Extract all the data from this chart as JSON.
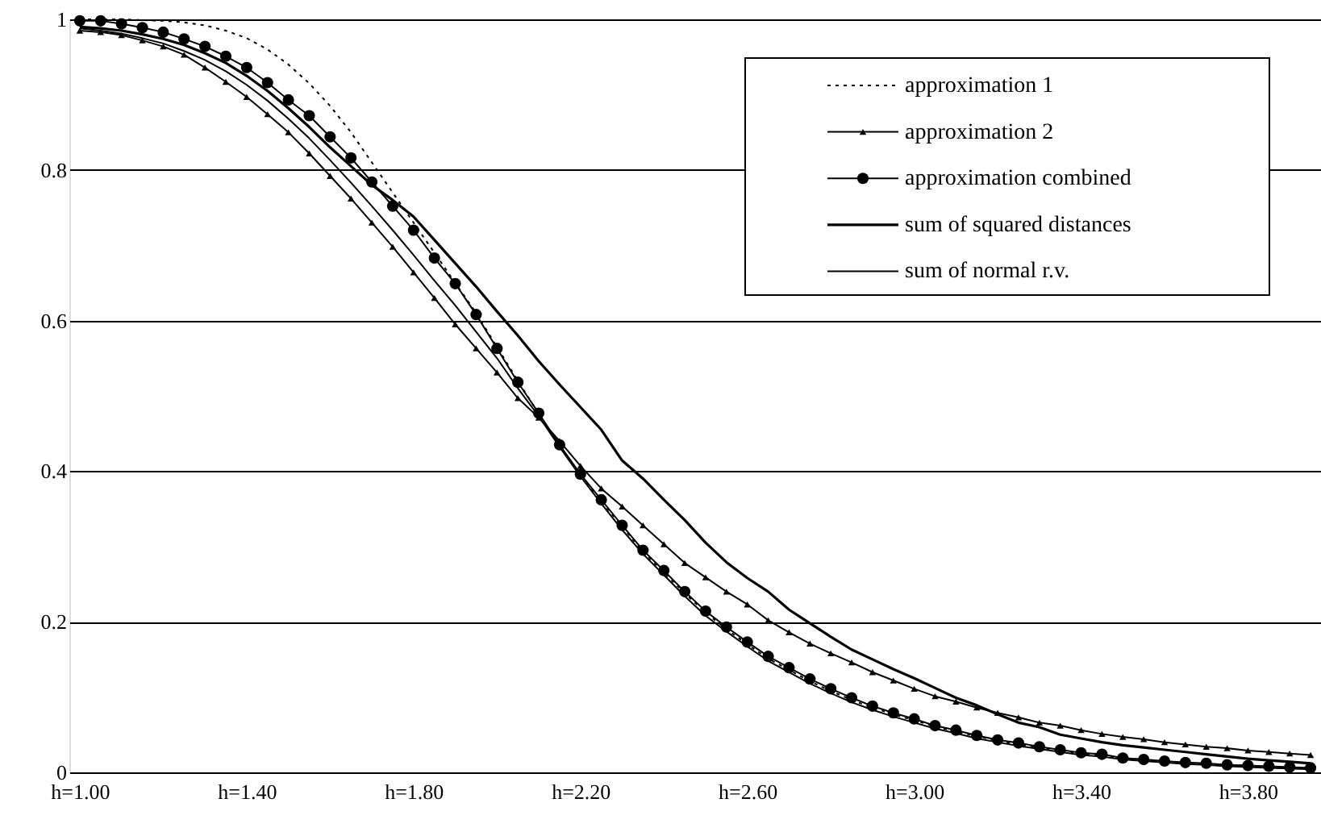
{
  "chart_data": {
    "type": "line",
    "categories": [
      "h=1.00",
      null,
      null,
      null,
      null,
      null,
      null,
      null,
      "h=1.40",
      null,
      null,
      null,
      null,
      null,
      null,
      null,
      "h=1.80",
      null,
      null,
      null,
      null,
      null,
      null,
      null,
      "h=2.20",
      null,
      null,
      null,
      null,
      null,
      null,
      null,
      "h=2.60",
      null,
      null,
      null,
      null,
      null,
      null,
      null,
      "h=3.00",
      null,
      null,
      null,
      null,
      null,
      null,
      null,
      "h=3.40",
      null,
      null,
      null,
      null,
      null,
      null,
      null,
      "h=3.80",
      null,
      null,
      null
    ],
    "ylim": [
      0,
      1
    ],
    "yticks": [
      0,
      0.2,
      0.4,
      0.6,
      0.8,
      1
    ],
    "grid": "y",
    "legend": "top right",
    "series": [
      {
        "name": "approximation 1",
        "color": "#000000",
        "line_style": "dotted",
        "marker": "none",
        "values": [
          1.0,
          1.0,
          1.0,
          0.999,
          0.998,
          0.996,
          0.992,
          0.985,
          0.975,
          0.96,
          0.94,
          0.915,
          0.885,
          0.85,
          0.81,
          0.77,
          0.73,
          0.69,
          0.65,
          0.61,
          0.565,
          0.52,
          0.476,
          0.434,
          0.395,
          0.36,
          0.326,
          0.293,
          0.265,
          0.238,
          0.212,
          0.19,
          0.17,
          0.151,
          0.136,
          0.121,
          0.108,
          0.096,
          0.086,
          0.077,
          0.069,
          0.061,
          0.054,
          0.048,
          0.042,
          0.037,
          0.033,
          0.029,
          0.025,
          0.022,
          0.019,
          0.017,
          0.015,
          0.013,
          0.011,
          0.01,
          0.009,
          0.007,
          0.006,
          0.006
        ]
      },
      {
        "name": "approximation 2",
        "color": "#000000",
        "line_style": "solid",
        "marker": "triangle",
        "values": [
          0.985,
          0.983,
          0.979,
          0.972,
          0.964,
          0.953,
          0.936,
          0.917,
          0.897,
          0.874,
          0.85,
          0.822,
          0.792,
          0.762,
          0.73,
          0.698,
          0.664,
          0.63,
          0.595,
          0.563,
          0.531,
          0.497,
          0.471,
          0.44,
          0.407,
          0.377,
          0.353,
          0.328,
          0.303,
          0.278,
          0.259,
          0.24,
          0.223,
          0.202,
          0.186,
          0.171,
          0.158,
          0.146,
          0.133,
          0.122,
          0.111,
          0.101,
          0.094,
          0.086,
          0.079,
          0.073,
          0.066,
          0.062,
          0.056,
          0.051,
          0.047,
          0.044,
          0.04,
          0.037,
          0.034,
          0.032,
          0.029,
          0.027,
          0.025,
          0.023
        ]
      },
      {
        "name": "approximation combined",
        "color": "#000000",
        "line_style": "solid",
        "marker": "circle",
        "values": [
          0.998,
          0.998,
          0.994,
          0.989,
          0.983,
          0.974,
          0.964,
          0.951,
          0.936,
          0.916,
          0.893,
          0.872,
          0.844,
          0.816,
          0.784,
          0.752,
          0.72,
          0.683,
          0.649,
          0.608,
          0.563,
          0.518,
          0.477,
          0.435,
          0.396,
          0.362,
          0.328,
          0.295,
          0.268,
          0.24,
          0.214,
          0.193,
          0.173,
          0.154,
          0.139,
          0.124,
          0.111,
          0.099,
          0.088,
          0.079,
          0.071,
          0.062,
          0.056,
          0.049,
          0.043,
          0.039,
          0.034,
          0.03,
          0.026,
          0.024,
          0.019,
          0.017,
          0.015,
          0.013,
          0.012,
          0.01,
          0.009,
          0.008,
          0.007,
          0.006
        ]
      },
      {
        "name": "sum of squared distances",
        "color": "#000000",
        "line_style": "solid",
        "marker": "none",
        "values": [
          0.99,
          0.988,
          0.985,
          0.98,
          0.974,
          0.966,
          0.955,
          0.942,
          0.925,
          0.905,
          0.882,
          0.857,
          0.83,
          0.805,
          0.78,
          0.76,
          0.738,
          0.707,
          0.676,
          0.645,
          0.612,
          0.58,
          0.546,
          0.515,
          0.485,
          0.455,
          0.414,
          0.39,
          0.362,
          0.335,
          0.305,
          0.279,
          0.258,
          0.24,
          0.216,
          0.198,
          0.18,
          0.163,
          0.15,
          0.137,
          0.125,
          0.112,
          0.099,
          0.089,
          0.077,
          0.066,
          0.06,
          0.05,
          0.045,
          0.04,
          0.036,
          0.033,
          0.03,
          0.027,
          0.024,
          0.021,
          0.018,
          0.016,
          0.014,
          0.012
        ]
      },
      {
        "name": "sum of normal r.v.",
        "color": "#000000",
        "line_style": "solid",
        "marker": "none",
        "values": [
          0.988,
          0.985,
          0.981,
          0.975,
          0.968,
          0.958,
          0.946,
          0.931,
          0.913,
          0.892,
          0.868,
          0.842,
          0.813,
          0.783,
          0.752,
          0.72,
          0.687,
          0.653,
          0.62,
          0.585,
          0.55,
          0.51,
          0.473,
          0.432,
          0.393,
          0.357,
          0.322,
          0.29,
          0.262,
          0.234,
          0.208,
          0.187,
          0.167,
          0.148,
          0.133,
          0.118,
          0.105,
          0.093,
          0.083,
          0.074,
          0.066,
          0.058,
          0.052,
          0.045,
          0.04,
          0.035,
          0.031,
          0.027,
          0.023,
          0.021,
          0.017,
          0.015,
          0.013,
          0.011,
          0.01,
          0.008,
          0.007,
          0.006,
          0.005,
          0.004
        ]
      }
    ]
  }
}
